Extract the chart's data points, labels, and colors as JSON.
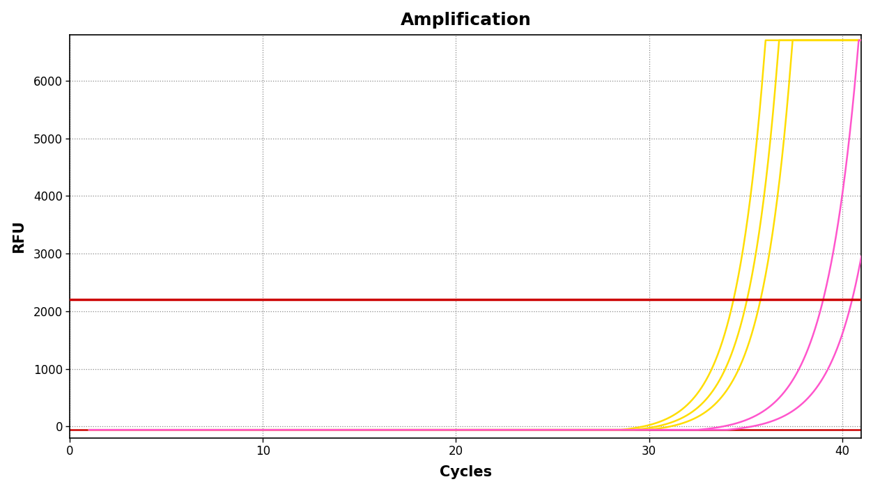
{
  "title": "Amplification",
  "xlabel": "Cycles",
  "ylabel": "RFU",
  "xlim": [
    1,
    41
  ],
  "ylim": [
    -200,
    6800
  ],
  "xticks": [
    0,
    10,
    20,
    30,
    40
  ],
  "yticks": [
    0,
    1000,
    2000,
    3000,
    4000,
    5000,
    6000
  ],
  "threshold_y": 2200,
  "threshold_color": "#cc0000",
  "background_color": "#ffffff",
  "grid_color": "#888888",
  "yellow_color": "#ffdd00",
  "pink_color": "#ff55cc",
  "yellow_params": [
    {
      "base": 1.92,
      "start": 28.5,
      "scale": 1.0
    },
    {
      "base": 1.92,
      "start": 29.2,
      "scale": 1.0
    },
    {
      "base": 1.92,
      "start": 29.9,
      "scale": 1.0
    }
  ],
  "pink_params": [
    {
      "base": 1.8,
      "start": 32.5,
      "scale": 1.0
    },
    {
      "base": 1.8,
      "start": 34.0,
      "scale": 1.0
    }
  ],
  "noise_level": -60,
  "baseline_noise": -60,
  "max_rfu": 6700,
  "line_width": 1.8
}
